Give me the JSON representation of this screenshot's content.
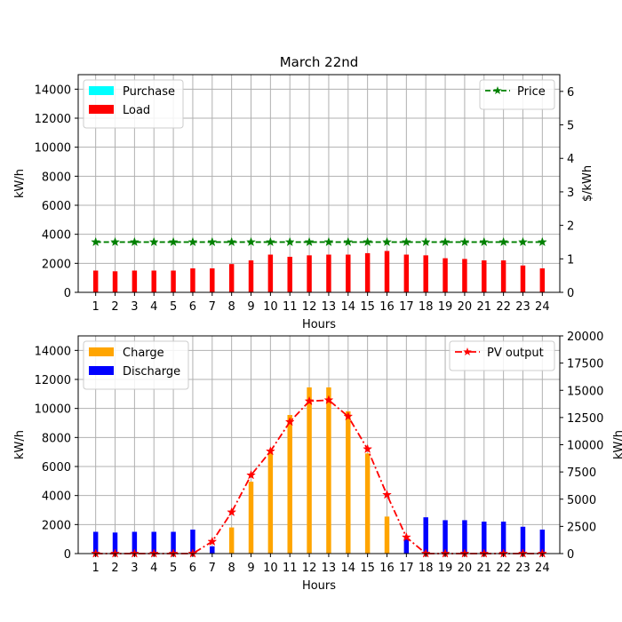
{
  "chart_data": [
    {
      "type": "bar",
      "title": "March 22nd",
      "xlabel": "Hours",
      "ylabel": "kW/h",
      "y2label": "$/kWh",
      "ylim": [
        0,
        15000
      ],
      "y2lim": [
        0,
        6.5
      ],
      "grid": true,
      "categories": [
        "1",
        "2",
        "3",
        "4",
        "5",
        "6",
        "7",
        "8",
        "9",
        "10",
        "11",
        "12",
        "13",
        "14",
        "15",
        "16",
        "17",
        "18",
        "19",
        "20",
        "21",
        "22",
        "23",
        "24"
      ],
      "yticks": [
        "0",
        "2000",
        "4000",
        "6000",
        "8000",
        "10000",
        "12000",
        "14000"
      ],
      "y2ticks": [
        "0",
        "1",
        "2",
        "3",
        "4",
        "5",
        "6"
      ],
      "series": [
        {
          "name": "Purchase",
          "kind": "bar",
          "axis": "left",
          "color": "#00ffff",
          "values": [
            0,
            0,
            0,
            0,
            0,
            0,
            0,
            0,
            0,
            0,
            0,
            0,
            0,
            0,
            0,
            0,
            0,
            0,
            0,
            0,
            0,
            0,
            0,
            0
          ]
        },
        {
          "name": "Load",
          "kind": "bar",
          "axis": "left",
          "color": "#ff0000",
          "values": [
            1500,
            1450,
            1500,
            1500,
            1500,
            1650,
            1650,
            1950,
            2200,
            2600,
            2450,
            2550,
            2600,
            2600,
            2700,
            2850,
            2600,
            2550,
            2350,
            2300,
            2200,
            2200,
            1850,
            1650
          ]
        },
        {
          "name": "Price",
          "kind": "line",
          "axis": "right",
          "color": "#008000",
          "values": [
            1.5,
            1.5,
            1.5,
            1.5,
            1.5,
            1.5,
            1.5,
            1.5,
            1.5,
            1.5,
            1.5,
            1.5,
            1.5,
            1.5,
            1.5,
            1.5,
            1.5,
            1.5,
            1.5,
            1.5,
            1.5,
            1.5,
            1.5,
            1.5
          ]
        }
      ],
      "legend_left": "upper-left",
      "legend_right": "upper-right"
    },
    {
      "type": "bar",
      "title": "",
      "xlabel": "Hours",
      "ylabel": "kW/h",
      "y2label": "kW/h",
      "ylim": [
        0,
        15000
      ],
      "y2lim": [
        0,
        20000
      ],
      "grid": true,
      "categories": [
        "1",
        "2",
        "3",
        "4",
        "5",
        "6",
        "7",
        "8",
        "9",
        "10",
        "11",
        "12",
        "13",
        "14",
        "15",
        "16",
        "17",
        "18",
        "19",
        "20",
        "21",
        "22",
        "23",
        "24"
      ],
      "yticks": [
        "0",
        "2000",
        "4000",
        "6000",
        "8000",
        "10000",
        "12000",
        "14000"
      ],
      "y2ticks": [
        "0",
        "2500",
        "5000",
        "7500",
        "10000",
        "12500",
        "15000",
        "17500",
        "20000"
      ],
      "series": [
        {
          "name": "Charge",
          "kind": "bar",
          "axis": "left",
          "color": "#ffa500",
          "values": [
            0,
            0,
            0,
            0,
            0,
            0,
            0,
            1800,
            4950,
            6950,
            9550,
            11450,
            11450,
            9800,
            6900,
            2550,
            0,
            0,
            0,
            0,
            0,
            0,
            0,
            0
          ]
        },
        {
          "name": "Discharge",
          "kind": "bar",
          "axis": "left",
          "color": "#0000ff",
          "values": [
            1500,
            1450,
            1500,
            1500,
            1500,
            1650,
            500,
            0,
            0,
            0,
            0,
            0,
            0,
            0,
            0,
            0,
            1050,
            2500,
            2300,
            2300,
            2200,
            2200,
            1850,
            1650
          ]
        },
        {
          "name": "PV output",
          "kind": "line",
          "axis": "right",
          "color": "#ff0000",
          "values": [
            0,
            0,
            0,
            0,
            0,
            0,
            1100,
            3800,
            7200,
            9400,
            12100,
            14000,
            14100,
            12600,
            9600,
            5400,
            1500,
            0,
            0,
            0,
            0,
            0,
            0,
            0
          ]
        }
      ],
      "legend_left": "upper-left",
      "legend_right": "upper-right"
    }
  ]
}
